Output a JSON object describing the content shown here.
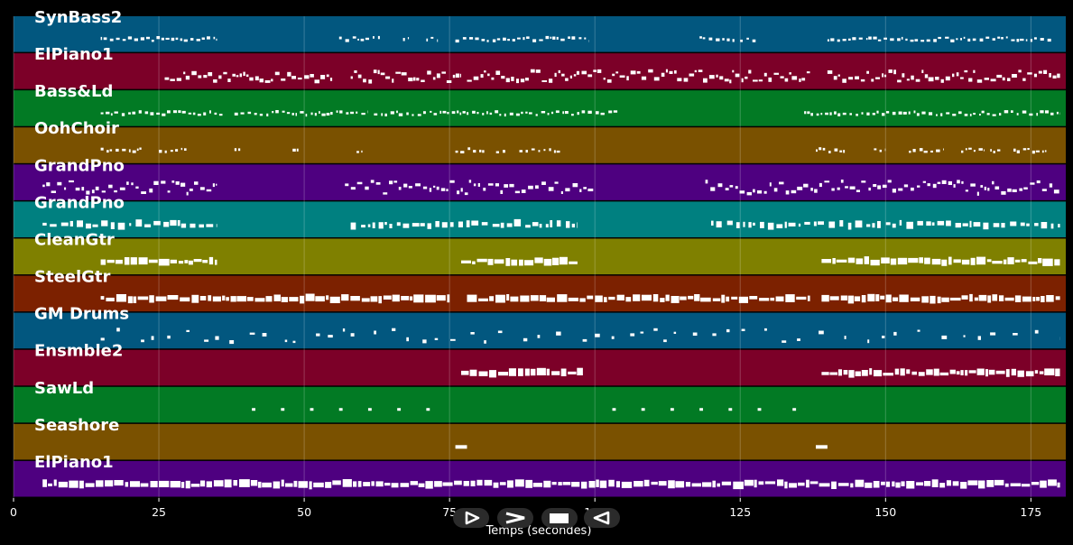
{
  "chart_data": {
    "type": "piano-roll",
    "xlabel": "Temps (secondes)",
    "xlim": [
      0,
      181
    ],
    "xticks": [
      0,
      25,
      50,
      75,
      100,
      125,
      150,
      175
    ],
    "tracks": [
      {
        "name": "SynBass2",
        "color": "#02577f",
        "segments": [
          [
            15,
            35
          ],
          [
            56,
            63
          ],
          [
            67,
            68
          ],
          [
            71,
            73
          ],
          [
            76,
            99
          ],
          [
            118,
            124
          ],
          [
            125,
            128
          ],
          [
            140,
            179
          ]
        ],
        "density": "sparse",
        "pattern": "line"
      },
      {
        "name": "ElPiano1",
        "color": "#7c0028",
        "segments": [
          [
            26,
            55
          ],
          [
            58,
            77
          ],
          [
            78,
            137
          ],
          [
            140,
            180
          ]
        ],
        "density": "dense",
        "pattern": "chords"
      },
      {
        "name": "Bass&Ld",
        "color": "#027a24",
        "segments": [
          [
            15,
            36
          ],
          [
            38,
            61
          ],
          [
            62,
            104
          ],
          [
            136,
            180
          ]
        ],
        "density": "sparse",
        "pattern": "line"
      },
      {
        "name": "OohChoir",
        "color": "#7a5100",
        "segments": [
          [
            15,
            22
          ],
          [
            25,
            30
          ],
          [
            38,
            39
          ],
          [
            48,
            49
          ],
          [
            59,
            60
          ],
          [
            76,
            81
          ],
          [
            83,
            85
          ],
          [
            87,
            94
          ],
          [
            138,
            143
          ],
          [
            148,
            150
          ],
          [
            154,
            160
          ],
          [
            163,
            167
          ],
          [
            168,
            170
          ],
          [
            172,
            178
          ]
        ],
        "density": "sparse",
        "pattern": "line"
      },
      {
        "name": "GrandPno",
        "color": "#4e0080",
        "segments": [
          [
            5,
            35
          ],
          [
            57,
            100
          ],
          [
            119,
            180
          ]
        ],
        "density": "dense",
        "pattern": "scatter"
      },
      {
        "name": "GrandPno",
        "color": "#008080",
        "segments": [
          [
            5,
            35
          ],
          [
            58,
            97
          ],
          [
            120,
            180
          ]
        ],
        "density": "medium",
        "pattern": "blocks"
      },
      {
        "name": "CleanGtr",
        "color": "#7f8000",
        "segments": [
          [
            15,
            35
          ],
          [
            77,
            97
          ],
          [
            139,
            180
          ]
        ],
        "density": "dense",
        "pattern": "band"
      },
      {
        "name": "SteelGtr",
        "color": "#7c2100",
        "segments": [
          [
            15,
            75
          ],
          [
            78,
            137
          ],
          [
            139,
            180
          ]
        ],
        "density": "dense",
        "pattern": "band"
      },
      {
        "name": "GM Drums",
        "color": "#02577f",
        "segments": [
          [
            15,
            180
          ]
        ],
        "density": "sparse",
        "pattern": "scatter"
      },
      {
        "name": "Ensmble2",
        "color": "#7c0028",
        "segments": [
          [
            77,
            98
          ],
          [
            139,
            180
          ]
        ],
        "density": "dense",
        "pattern": "band"
      },
      {
        "name": "SawLd",
        "color": "#027a24",
        "segments": [
          [
            41,
            42
          ],
          [
            46,
            47
          ],
          [
            51,
            52
          ],
          [
            56,
            57
          ],
          [
            61,
            62
          ],
          [
            66,
            67
          ],
          [
            71,
            72
          ],
          [
            103,
            104
          ],
          [
            108,
            109
          ],
          [
            113,
            114
          ],
          [
            118,
            119
          ],
          [
            123,
            124
          ],
          [
            128,
            129
          ],
          [
            134,
            135
          ]
        ],
        "density": "dots",
        "pattern": "dots"
      },
      {
        "name": "Seashore",
        "color": "#7a5100",
        "segments": [
          [
            76,
            78
          ],
          [
            138,
            140
          ]
        ],
        "density": "solid",
        "pattern": "dash"
      },
      {
        "name": "ElPiano1",
        "color": "#4e0080",
        "segments": [
          [
            5,
            180
          ]
        ],
        "density": "dense",
        "pattern": "band"
      }
    ]
  },
  "controls": [
    {
      "name": "play-button",
      "icon": "play-triangle-icon"
    },
    {
      "name": "fast-forward-button",
      "icon": "chevron-right-icon"
    },
    {
      "name": "stop-button",
      "icon": "stop-square-icon"
    },
    {
      "name": "rewind-button",
      "icon": "reverse-triangle-icon"
    }
  ]
}
